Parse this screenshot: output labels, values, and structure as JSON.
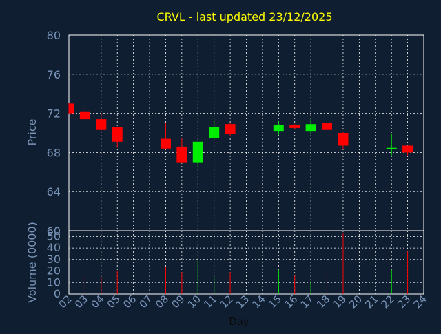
{
  "chart_data": [
    {
      "type": "candlestick",
      "title": "CRVL - last updated 23/12/2025",
      "ylabel": "Price",
      "ylim": [
        60,
        80
      ],
      "yticks": [
        "80",
        "76",
        "72",
        "68",
        "64",
        "60"
      ],
      "ytick_values": [
        80,
        76,
        72,
        68,
        64,
        60
      ],
      "grid": true,
      "colors": {
        "up": "#00ee00",
        "down": "#ff0000",
        "background": "#0f1e30",
        "title": "#ffff00",
        "axis_text": "#7a95b8",
        "grid": "#ffffff"
      },
      "candles": [
        {
          "day": 2,
          "open": 73.0,
          "high": 73.1,
          "low": 71.9,
          "close": 72.0
        },
        {
          "day": 3,
          "open": 72.2,
          "high": 72.6,
          "low": 71.3,
          "close": 71.4
        },
        {
          "day": 4,
          "open": 71.4,
          "high": 72.0,
          "low": 70.2,
          "close": 70.3
        },
        {
          "day": 5,
          "open": 70.6,
          "high": 70.6,
          "low": 68.5,
          "close": 69.1
        },
        {
          "day": 8,
          "open": 69.4,
          "high": 71.0,
          "low": 68.3,
          "close": 68.4
        },
        {
          "day": 9,
          "open": 68.6,
          "high": 69.5,
          "low": 66.9,
          "close": 67.0
        },
        {
          "day": 10,
          "open": 67.0,
          "high": 69.1,
          "low": 66.5,
          "close": 69.1
        },
        {
          "day": 11,
          "open": 69.5,
          "high": 71.3,
          "low": 69.5,
          "close": 70.6
        },
        {
          "day": 12,
          "open": 70.9,
          "high": 71.0,
          "low": 69.7,
          "close": 69.9
        },
        {
          "day": 15,
          "open": 70.2,
          "high": 71.2,
          "low": 69.8,
          "close": 70.8
        },
        {
          "day": 16,
          "open": 70.8,
          "high": 70.9,
          "low": 70.4,
          "close": 70.5
        },
        {
          "day": 17,
          "open": 70.2,
          "high": 71.4,
          "low": 69.9,
          "close": 70.9
        },
        {
          "day": 18,
          "open": 71.0,
          "high": 71.0,
          "low": 70.2,
          "close": 70.3
        },
        {
          "day": 19,
          "open": 70.0,
          "high": 70.1,
          "low": 68.3,
          "close": 68.7
        },
        {
          "day": 22,
          "open": 68.3,
          "high": 69.9,
          "low": 67.7,
          "close": 68.4
        },
        {
          "day": 23,
          "open": 68.7,
          "high": 68.7,
          "low": 67.7,
          "close": 68.0
        }
      ]
    },
    {
      "type": "bar",
      "ylabel": "Volume (0000)",
      "ylim": [
        0,
        55
      ],
      "yticks": [
        "50",
        "40",
        "30",
        "20",
        "10",
        "0"
      ],
      "ytick_values": [
        50,
        40,
        30,
        20,
        10,
        0
      ],
      "xlabel": "Day",
      "xlim": [
        2,
        24
      ],
      "xticks": [
        "02",
        "03",
        "04",
        "05",
        "06",
        "07",
        "08",
        "09",
        "10",
        "11",
        "12",
        "13",
        "14",
        "15",
        "16",
        "17",
        "18",
        "19",
        "20",
        "21",
        "22",
        "23",
        "24"
      ],
      "volumes": [
        {
          "day": 3,
          "value": 15,
          "dir": "down"
        },
        {
          "day": 4,
          "value": 15,
          "dir": "down"
        },
        {
          "day": 5,
          "value": 20,
          "dir": "down"
        },
        {
          "day": 8,
          "value": 24,
          "dir": "down"
        },
        {
          "day": 9,
          "value": 19,
          "dir": "down"
        },
        {
          "day": 10,
          "value": 29,
          "dir": "up"
        },
        {
          "day": 11,
          "value": 16,
          "dir": "up"
        },
        {
          "day": 12,
          "value": 19,
          "dir": "down"
        },
        {
          "day": 15,
          "value": 21,
          "dir": "up"
        },
        {
          "day": 16,
          "value": 16,
          "dir": "down"
        },
        {
          "day": 17,
          "value": 11,
          "dir": "up"
        },
        {
          "day": 18,
          "value": 16,
          "dir": "down"
        },
        {
          "day": 19,
          "value": 53,
          "dir": "down"
        },
        {
          "day": 22,
          "value": 21,
          "dir": "up"
        },
        {
          "day": 23,
          "value": 37,
          "dir": "down"
        }
      ]
    }
  ]
}
